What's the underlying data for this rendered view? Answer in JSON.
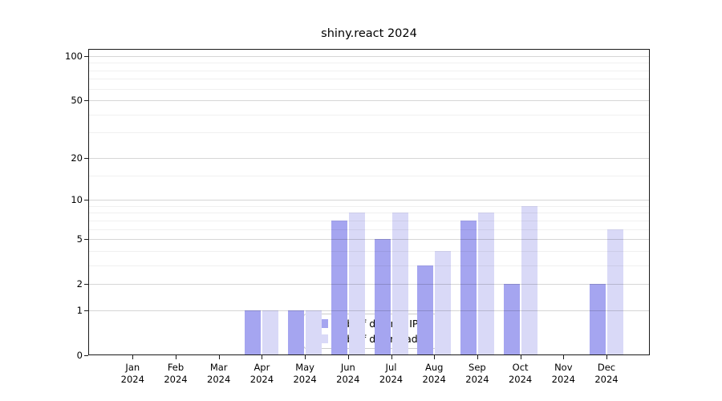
{
  "title": "shiny.react 2024",
  "chart_data": {
    "type": "bar",
    "title": "shiny.react 2024",
    "categories": [
      "Jan 2024",
      "Feb 2024",
      "Mar 2024",
      "Apr 2024",
      "May 2024",
      "Jun 2024",
      "Jul 2024",
      "Aug 2024",
      "Sep 2024",
      "Oct 2024",
      "Nov 2024",
      "Dec 2024"
    ],
    "series": [
      {
        "name": "Nb of distinct IPs",
        "color": "#a5a5f0",
        "values": [
          0,
          0,
          0,
          1,
          1,
          7,
          5,
          3,
          7,
          2,
          0,
          2
        ]
      },
      {
        "name": "Nb of downloads",
        "color": "#d9d9f7",
        "values": [
          0,
          0,
          0,
          1,
          1,
          8,
          8,
          4,
          8,
          9,
          0,
          6
        ]
      }
    ],
    "yscale": "log1p",
    "yticks": [
      0,
      1,
      2,
      5,
      10,
      20,
      50,
      100
    ],
    "minor_gridlines": [
      3,
      4,
      6,
      7,
      8,
      9,
      15,
      30,
      40,
      60,
      70,
      80,
      90
    ],
    "ylim": [
      0,
      112
    ],
    "xlabel": "",
    "ylabel": "",
    "grid": true,
    "legend_position": "inside lower-center-left"
  },
  "legend": {
    "items": [
      {
        "label": "Nb of distinct IPs",
        "color": "#a5a5f0"
      },
      {
        "label": "Nb of downloads",
        "color": "#d9d9f7"
      }
    ]
  }
}
